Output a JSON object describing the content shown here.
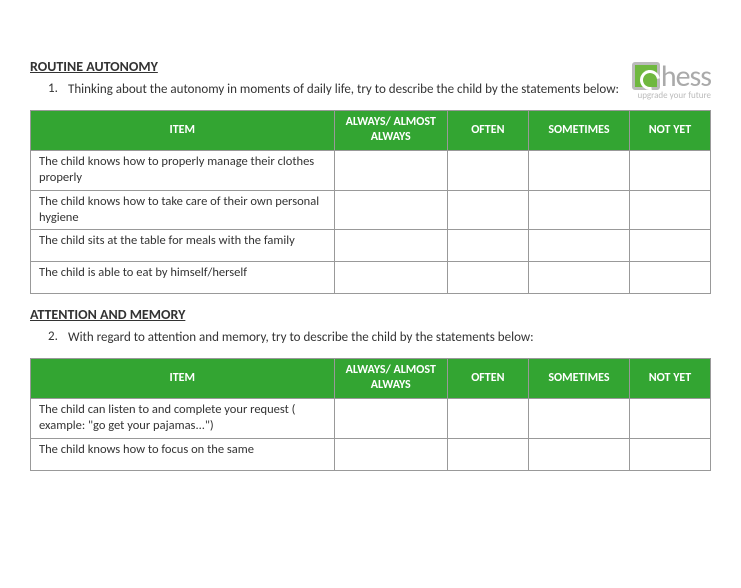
{
  "logo": {
    "text": "hess",
    "tagline": "upgrade your future"
  },
  "header_green": "#33a532",
  "section1": {
    "title": "ROUTINE AUTONOMY",
    "prompt_num": "1.",
    "prompt": "Thinking about the autonomy in moments of daily life, try to describe the child by the statements below:",
    "columns": {
      "item": "ITEM",
      "always": "ALWAYS/ ALMOST ALWAYS",
      "often": "OFTEN",
      "sometimes": "SOMETIMES",
      "notyet": "NOT YET"
    },
    "rows": [
      "The child knows how to properly manage their clothes properly",
      "The child knows how to take care of their own personal hygiene",
      "The child sits at the table for meals with the family",
      "The child is able to eat by himself/herself"
    ]
  },
  "section2": {
    "title": "ATTENTION AND MEMORY",
    "prompt_num": "2.",
    "prompt": "With regard to attention and memory, try to describe the child by the statements below:",
    "columns": {
      "item": "ITEM",
      "always": "ALWAYS/ ALMOST ALWAYS",
      "often": "OFTEN",
      "sometimes": "SOMETIMES",
      "notyet": "NOT YET"
    },
    "rows": [
      "The child can listen to and complete your request ( example: \"go get your pajamas...\")",
      "The child knows how to focus on the same"
    ]
  }
}
